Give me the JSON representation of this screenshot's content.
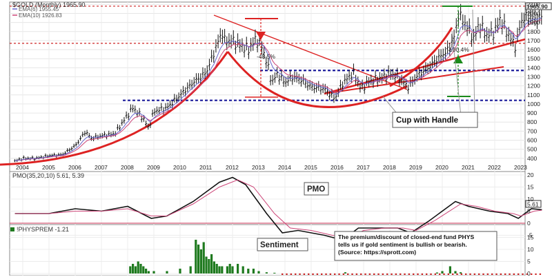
{
  "chart_data": [
    {
      "type": "ohlc",
      "title": "$GOLD (Monthly) 1965.90",
      "last_price_badge": "1965.90",
      "legend": [
        {
          "label": "EMA(6) 1955.45",
          "color": "#6666cc"
        },
        {
          "label": "EMA(10) 1926.83",
          "color": "#cc4477"
        }
      ],
      "x_ticks": [
        "2004",
        "2005",
        "2006",
        "2007",
        "2008",
        "2009",
        "2010",
        "2011",
        "2012",
        "2013",
        "2014",
        "2015",
        "2016",
        "2017",
        "2018",
        "2019",
        "2020",
        "2021",
        "2022",
        "2023"
      ],
      "y_ticks": [
        400,
        500,
        600,
        700,
        800,
        900,
        1000,
        1100,
        1200,
        1300,
        1400,
        1500,
        1600,
        1700,
        1800,
        1900,
        2000,
        2100
      ],
      "ylim": [
        330,
        2110
      ],
      "price_path": [
        [
          2003.7,
          370
        ],
        [
          2004.0,
          400
        ],
        [
          2004.5,
          400
        ],
        [
          2005.0,
          430
        ],
        [
          2005.5,
          440
        ],
        [
          2006.0,
          540
        ],
        [
          2006.4,
          700
        ],
        [
          2006.6,
          620
        ],
        [
          2007.0,
          650
        ],
        [
          2007.5,
          670
        ],
        [
          2008.0,
          880
        ],
        [
          2008.2,
          960
        ],
        [
          2008.6,
          840
        ],
        [
          2008.8,
          730
        ],
        [
          2009.0,
          920
        ],
        [
          2009.5,
          960
        ],
        [
          2010.0,
          1100
        ],
        [
          2010.5,
          1240
        ],
        [
          2011.0,
          1350
        ],
        [
          2011.6,
          1800
        ],
        [
          2011.7,
          1700
        ],
        [
          2012.0,
          1700
        ],
        [
          2012.3,
          1650
        ],
        [
          2012.6,
          1600
        ],
        [
          2012.9,
          1720
        ],
        [
          2013.1,
          1650
        ],
        [
          2013.3,
          1470
        ],
        [
          2013.5,
          1240
        ],
        [
          2013.7,
          1330
        ],
        [
          2014.0,
          1240
        ],
        [
          2014.3,
          1300
        ],
        [
          2014.6,
          1270
        ],
        [
          2015.0,
          1190
        ],
        [
          2015.5,
          1170
        ],
        [
          2015.9,
          1060
        ],
        [
          2016.2,
          1230
        ],
        [
          2016.6,
          1350
        ],
        [
          2016.9,
          1170
        ],
        [
          2017.2,
          1250
        ],
        [
          2017.7,
          1290
        ],
        [
          2018.0,
          1340
        ],
        [
          2018.3,
          1300
        ],
        [
          2018.7,
          1190
        ],
        [
          2019.0,
          1300
        ],
        [
          2019.5,
          1410
        ],
        [
          2019.8,
          1500
        ],
        [
          2020.2,
          1590
        ],
        [
          2020.5,
          1770
        ],
        [
          2020.6,
          2000
        ],
        [
          2020.9,
          1880
        ],
        [
          2021.2,
          1720
        ],
        [
          2021.4,
          1880
        ],
        [
          2021.7,
          1760
        ],
        [
          2022.0,
          1800
        ],
        [
          2022.2,
          1940
        ],
        [
          2022.5,
          1780
        ],
        [
          2022.8,
          1630
        ],
        [
          2023.0,
          1920
        ],
        [
          2023.3,
          1980
        ],
        [
          2023.5,
          1940
        ],
        [
          2023.8,
          1960
        ]
      ],
      "annotations": {
        "decline_pct": "-48.5%",
        "rise_pct": "100.4%",
        "pattern_label": "Cup with Handle"
      },
      "support_levels": [
        1040,
        1370,
        1670,
        2080
      ],
      "colors": {
        "price": "#111111",
        "ema6": "#6666cc",
        "ema10": "#cc4477",
        "trend": "#dd2222",
        "support": "#1a1a9a",
        "resistance": "#cc2222",
        "arrow_down": "#dd2222",
        "arrow_up": "#1a8a1a"
      }
    },
    {
      "type": "line",
      "title": "PMO(35,20,10) 5.61, 5.39",
      "label_box": "PMO",
      "value_badge": "5.61",
      "y_ticks": [
        -5,
        0,
        5,
        10,
        15,
        20
      ],
      "ylim": [
        -8,
        21
      ],
      "series": [
        {
          "name": "PMO",
          "color": "#111111",
          "points": [
            [
              2003.7,
              4
            ],
            [
              2005,
              4
            ],
            [
              2006,
              6
            ],
            [
              2007,
              5
            ],
            [
              2008,
              7
            ],
            [
              2008.9,
              2
            ],
            [
              2009.5,
              3
            ],
            [
              2010.5,
              9
            ],
            [
              2011.5,
              17
            ],
            [
              2012,
              19
            ],
            [
              2012.5,
              16
            ],
            [
              2013.3,
              4
            ],
            [
              2013.9,
              -4
            ],
            [
              2014.5,
              -3
            ],
            [
              2015.5,
              -5
            ],
            [
              2016.2,
              -7
            ],
            [
              2016.8,
              -2
            ],
            [
              2017.5,
              -2
            ],
            [
              2018.3,
              -2
            ],
            [
              2018.8,
              -4
            ],
            [
              2019.5,
              1
            ],
            [
              2020.5,
              9
            ],
            [
              2021,
              7
            ],
            [
              2021.8,
              5
            ],
            [
              2022.5,
              4
            ],
            [
              2022.9,
              2
            ],
            [
              2023.4,
              6
            ],
            [
              2023.8,
              5.6
            ]
          ]
        },
        {
          "name": "Signal",
          "color": "#cc4477",
          "points": [
            [
              2003.7,
              4
            ],
            [
              2005,
              4
            ],
            [
              2006,
              5
            ],
            [
              2007,
              5
            ],
            [
              2008,
              6
            ],
            [
              2008.9,
              3
            ],
            [
              2009.5,
              3
            ],
            [
              2010.5,
              8
            ],
            [
              2011.5,
              15
            ],
            [
              2012.2,
              18
            ],
            [
              2012.8,
              15
            ],
            [
              2013.6,
              4
            ],
            [
              2014.2,
              -2
            ],
            [
              2015,
              -3
            ],
            [
              2015.8,
              -5
            ],
            [
              2016.4,
              -6
            ],
            [
              2017,
              -3
            ],
            [
              2017.8,
              -2
            ],
            [
              2018.5,
              -2
            ],
            [
              2019,
              -3
            ],
            [
              2019.7,
              1
            ],
            [
              2020.7,
              8
            ],
            [
              2021.3,
              7
            ],
            [
              2022,
              5
            ],
            [
              2022.7,
              4
            ],
            [
              2023,
              3
            ],
            [
              2023.5,
              5
            ],
            [
              2023.8,
              5.4
            ]
          ]
        }
      ]
    },
    {
      "type": "bar",
      "title": "!PHYSPREM -1.21",
      "label_box": "Sentiment",
      "note": "The premium/discount of closed-end fund PHYS tells us if gold sentiment is bullish or bearish. (Source: https://sprott.com)",
      "y_ticks": [
        0,
        5,
        10,
        15
      ],
      "ylim": [
        -1,
        17
      ],
      "color": "#1f7a1f",
      "values": [
        [
          2008.1,
          3
        ],
        [
          2008.2,
          4
        ],
        [
          2008.3,
          3
        ],
        [
          2008.4,
          5
        ],
        [
          2008.5,
          4
        ],
        [
          2008.6,
          3
        ],
        [
          2008.7,
          2
        ],
        [
          2008.8,
          1
        ],
        [
          2009.0,
          1
        ],
        [
          2009.5,
          1
        ],
        [
          2010.0,
          2
        ],
        [
          2010.4,
          3
        ],
        [
          2010.6,
          14
        ],
        [
          2010.7,
          12
        ],
        [
          2010.8,
          10
        ],
        [
          2010.9,
          13
        ],
        [
          2011.0,
          7
        ],
        [
          2011.1,
          6
        ],
        [
          2011.2,
          8
        ],
        [
          2011.3,
          5
        ],
        [
          2011.4,
          4
        ],
        [
          2011.5,
          3
        ],
        [
          2011.6,
          3
        ],
        [
          2011.8,
          3
        ],
        [
          2011.9,
          4
        ],
        [
          2012.0,
          3
        ],
        [
          2012.2,
          4
        ],
        [
          2012.4,
          3
        ],
        [
          2012.6,
          2
        ],
        [
          2012.8,
          2
        ],
        [
          2013.0,
          1
        ],
        [
          2013.3,
          0.5
        ],
        [
          2013.6,
          0.3
        ],
        [
          2016.3,
          0.5
        ],
        [
          2019.8,
          0.4
        ],
        [
          2020.0,
          1
        ],
        [
          2020.3,
          3
        ],
        [
          2020.5,
          1
        ],
        [
          2020.7,
          0.5
        ]
      ]
    }
  ]
}
